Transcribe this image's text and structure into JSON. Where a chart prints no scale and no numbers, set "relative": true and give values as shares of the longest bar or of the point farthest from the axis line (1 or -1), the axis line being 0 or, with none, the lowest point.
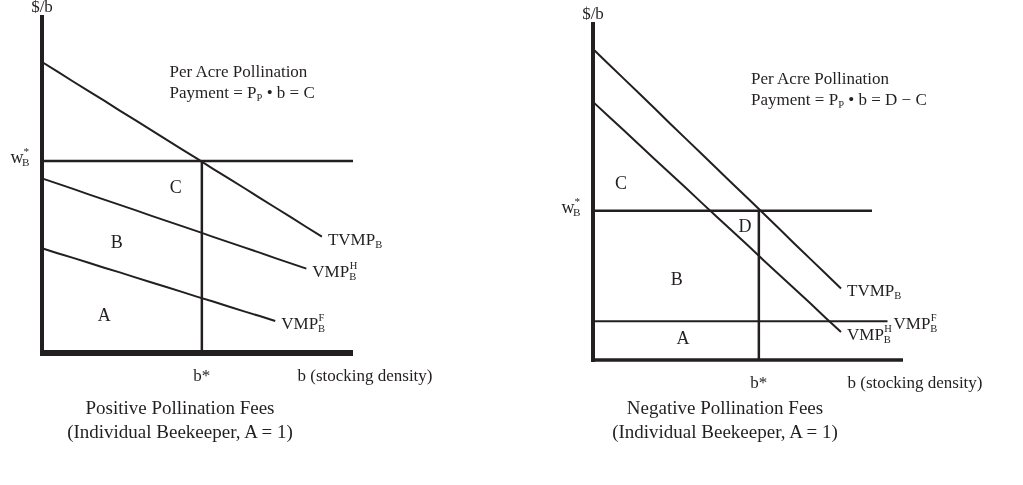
{
  "chart_data": [
    {
      "type": "line",
      "relative": true,
      "title": "Positive Pollination Fees",
      "subtitle": "(Individual Beekeeper, A = 1)",
      "xlabel": "b (stocking density)",
      "ylabel": "$/b",
      "legend": false,
      "marker": "none",
      "line_style": "solid",
      "categories": [
        null,
        null,
        null,
        null,
        null,
        null,
        null,
        null,
        null,
        null,
        null,
        null,
        null,
        null,
        null,
        null,
        null,
        null,
        null,
        null,
        null
      ],
      "series": [
        {
          "name": "TVMP$_{B}$",
          "color": "#231f20",
          "values": [
            1,
            0.967,
            0.933,
            0.9,
            0.867,
            0.833,
            0.8,
            0.767,
            0.733,
            0.7,
            0.667,
            0.633,
            0.6,
            0.567,
            0.533,
            0.5,
            0.467,
            0.433,
            0.4,
            null,
            null
          ]
        },
        {
          "name": "VMP$_{B}$$^{H}$",
          "color": "#231f20",
          "values": [
            0.6,
            0.582,
            0.564,
            0.545,
            0.527,
            0.509,
            0.491,
            0.472,
            0.454,
            0.436,
            0.418,
            0.399,
            0.381,
            0.363,
            0.345,
            0.326,
            0.308,
            0.29,
            null,
            null,
            null
          ]
        },
        {
          "name": "VMP$_{B}$$^{F}$",
          "color": "#231f20",
          "values": [
            0.36,
            0.343,
            0.327,
            0.31,
            0.293,
            0.277,
            0.26,
            0.243,
            0.227,
            0.21,
            0.193,
            0.177,
            0.16,
            0.143,
            0.127,
            0.11,
            null,
            null,
            null,
            null,
            null
          ]
        }
      ],
      "ref_lines": [
        {
          "axis": "y",
          "value": 0.66,
          "label": "w$^{*}$$_{B}$"
        }
      ],
      "annotations": [
        "Per Acre Pollination\nPayment = P$_{P}$ • b = C",
        "b*",
        "A",
        "B",
        "C"
      ]
    },
    {
      "type": "line",
      "relative": true,
      "title": "Negative Pollination Fees",
      "subtitle": "(Individual Beekeeper, A = 1)",
      "xlabel": "b (stocking density)",
      "ylabel": "$/b",
      "legend": false,
      "marker": "none",
      "line_style": "solid",
      "categories": [
        null,
        null,
        null,
        null,
        null,
        null,
        null,
        null,
        null,
        null,
        null,
        null,
        null,
        null,
        null,
        null,
        null,
        null,
        null,
        null,
        null
      ],
      "series": [
        {
          "name": "TVMP$_{B}$",
          "color": "#231f20",
          "values": [
            1,
            0.952,
            0.904,
            0.856,
            0.808,
            0.759,
            0.711,
            0.663,
            0.615,
            0.567,
            0.519,
            0.471,
            0.423,
            0.374,
            0.326,
            0.278,
            0.23,
            null,
            null,
            null,
            null
          ]
        },
        {
          "name": "VMP$_{B}$$^{F}$",
          "color": "#231f20",
          "values": [
            0.125,
            0.125,
            0.125,
            0.125,
            0.125,
            0.125,
            0.125,
            0.125,
            0.125,
            0.125,
            0.125,
            0.125,
            0.125,
            0.125,
            0.125,
            0.125,
            0.125,
            0.125,
            0.125,
            0.125,
            null
          ]
        },
        {
          "name": "VMP$_{B}$$^{H}$",
          "color": "#231f20",
          "values": [
            0.83,
            0.784,
            0.738,
            0.691,
            0.645,
            0.599,
            0.553,
            0.506,
            0.46,
            0.414,
            0.368,
            0.321,
            0.275,
            0.229,
            0.183,
            0.136,
            0.09,
            null,
            null,
            null,
            null
          ]
        }
      ],
      "ref_lines": [
        {
          "axis": "y",
          "value": 0.48,
          "label": "w$^{*}$$_{B}$"
        }
      ],
      "annotations": [
        "Per Acre Pollination\nPayment = P$_{P}$ • b = D − C",
        "b*",
        "A",
        "B",
        "C",
        "D"
      ]
    }
  ]
}
